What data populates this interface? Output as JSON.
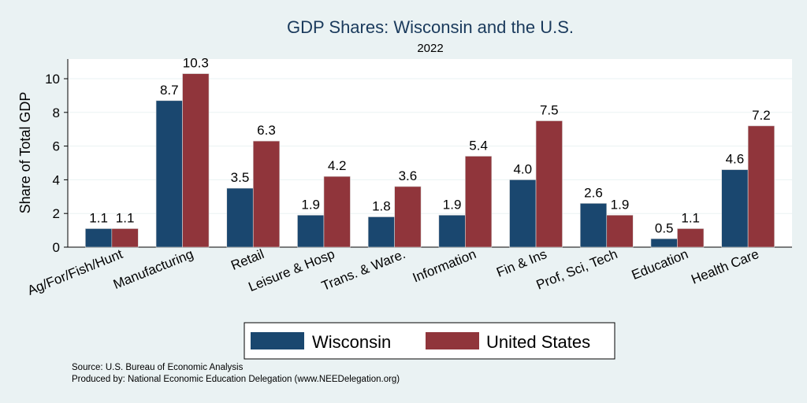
{
  "chart_data": {
    "type": "bar",
    "title": "GDP Shares: Wisconsin and the U.S.",
    "subtitle": "2022",
    "ylabel": "Share of Total GDP",
    "xlabel": "",
    "ylim": [
      0,
      11
    ],
    "yticks": [
      0,
      2,
      4,
      6,
      8,
      10
    ],
    "grid": true,
    "legend_position": "bottom",
    "categories": [
      "Ag/For/Fish/Hunt",
      "Manufacturing",
      "Retail",
      "Leisure & Hosp",
      "Trans. & Ware.",
      "Information",
      "Fin & Ins",
      "Prof, Sci, Tech",
      "Education",
      "Health Care"
    ],
    "series": [
      {
        "name": "Wisconsin",
        "color": "#1a476f",
        "values": [
          1.1,
          8.7,
          3.5,
          1.9,
          1.8,
          1.9,
          4.0,
          2.6,
          0.5,
          4.6
        ],
        "labels": [
          "1.1",
          "8.7",
          "3.5",
          "1.9",
          "1.8",
          "1.9",
          "4.0",
          "2.6",
          "0.5",
          "4.6"
        ]
      },
      {
        "name": "United States",
        "color": "#90353b",
        "values": [
          1.1,
          10.3,
          6.3,
          4.2,
          3.6,
          5.4,
          7.5,
          1.9,
          1.1,
          7.2
        ],
        "labels": [
          "1.1",
          "10.3",
          "6.3",
          "4.2",
          "3.6",
          "5.4",
          "7.5",
          "1.9",
          "1.1",
          "7.2"
        ]
      }
    ]
  },
  "source_line": "Source: U.S. Bureau of Economic Analysis",
  "produced_line": "Produced by: National Economic Education Delegation (www.NEEDelegation.org)"
}
